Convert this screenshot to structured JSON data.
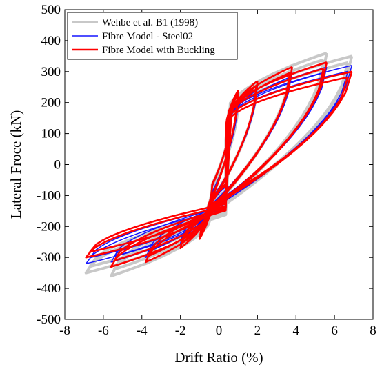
{
  "chart_data": {
    "type": "line",
    "title": "",
    "xlabel": "Drift Ratio (%)",
    "ylabel": "Lateral Froce (kN)",
    "xlim": [
      -8,
      8
    ],
    "ylim": [
      -500,
      500
    ],
    "xticks": [
      -8,
      -6,
      -4,
      -2,
      0,
      2,
      4,
      6,
      8
    ],
    "yticks": [
      -500,
      -400,
      -300,
      -200,
      -100,
      0,
      100,
      200,
      300,
      400,
      500
    ],
    "xtick_labels": [
      "-8",
      "-6",
      "-4",
      "-2",
      "0",
      "2",
      "4",
      "6",
      "8"
    ],
    "ytick_labels": [
      "-500",
      "-400",
      "-300",
      "-200",
      "-100",
      "0",
      "100",
      "200",
      "300",
      "400",
      "500"
    ],
    "grid": false,
    "legend_position": "top-left",
    "series": [
      {
        "name": "Wehbe et al. B1 (1998)",
        "color": "#c8c8c8",
        "cycles": [
          {
            "amp": 0.6,
            "fpeak": 150,
            "fzero": 80
          },
          {
            "amp": 1.0,
            "fpeak": 200,
            "fzero": 100
          },
          {
            "amp": 2.0,
            "fpeak": 265,
            "fzero": 110
          },
          {
            "amp": 3.8,
            "fpeak": 320,
            "fzero": 110
          },
          {
            "amp": 5.6,
            "fpeak": 360,
            "fzero": 120
          },
          {
            "amp": 6.9,
            "fpeak": 350,
            "fzero": 130
          }
        ]
      },
      {
        "name": "Fibre Model - Steel02",
        "color": "#1515ff",
        "cycles": [
          {
            "amp": 0.6,
            "fpeak": 160,
            "fzero": 100
          },
          {
            "amp": 1.0,
            "fpeak": 210,
            "fzero": 110
          },
          {
            "amp": 2.0,
            "fpeak": 255,
            "fzero": 120
          },
          {
            "amp": 3.8,
            "fpeak": 300,
            "fzero": 130
          },
          {
            "amp": 5.6,
            "fpeak": 315,
            "fzero": 140
          },
          {
            "amp": 6.9,
            "fpeak": 320,
            "fzero": 150
          }
        ]
      },
      {
        "name": "Fibre Model with Buckling",
        "color": "#ff0000",
        "cycles": [
          {
            "amp": 0.6,
            "fpeak": 150,
            "fzero": 90
          },
          {
            "amp": 1.0,
            "fpeak": 240,
            "fzero": 110
          },
          {
            "amp": 2.0,
            "fpeak": 270,
            "fzero": 120
          },
          {
            "amp": 3.8,
            "fpeak": 315,
            "fzero": 130
          },
          {
            "amp": 5.6,
            "fpeak": 330,
            "fzero": 140
          },
          {
            "amp": 6.9,
            "fpeak": 300,
            "fzero": 150
          }
        ]
      }
    ]
  }
}
